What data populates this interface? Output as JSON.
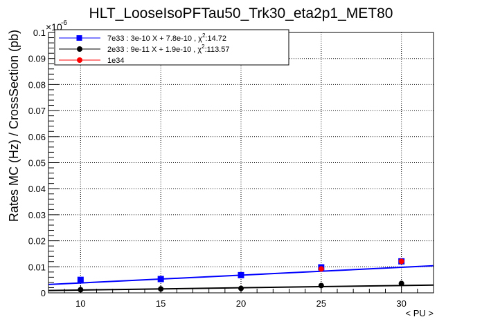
{
  "chart_data": {
    "type": "scatter",
    "title": "HLT_LooseIsoPFTau50_Trk30_eta2p1_MET80",
    "xlabel": "< PU >",
    "ylabel": "Rates MC (Hz) / CrossSection (pb)",
    "y_multiplier_label": "×10",
    "y_multiplier_exp": "-6",
    "xlim": [
      8,
      32
    ],
    "ylim": [
      0,
      0.1
    ],
    "grid": true,
    "legend_position": "top-left",
    "x_ticks": [
      10,
      15,
      20,
      25,
      30
    ],
    "x_tick_labels": [
      "10",
      "15",
      "20",
      "25",
      "30"
    ],
    "y_ticks": [
      0,
      0.01,
      0.02,
      0.03,
      0.04,
      0.05,
      0.06,
      0.07,
      0.08,
      0.09,
      0.1
    ],
    "y_tick_labels": [
      "0",
      "0.01",
      "0.02",
      "0.03",
      "0.04",
      "0.05",
      "0.06",
      "0.07",
      "0.08",
      "0.09",
      "0.1"
    ],
    "series": [
      {
        "name": "7e33 : 3e-10 X + 7.8e-10 , χ",
        "chi_exp": "2",
        "chi_value": ":14.72",
        "color": "#0000ff",
        "marker": "square",
        "x": [
          10,
          15,
          20,
          25,
          30
        ],
        "y": [
          0.005,
          0.0053,
          0.0068,
          0.0098,
          0.0121
        ],
        "fit": {
          "x": [
            8,
            32
          ],
          "y": [
            0.0032,
            0.0104
          ]
        }
      },
      {
        "name": "2e33 : 9e-11 X + 1.9e-10 , χ",
        "chi_exp": "2",
        "chi_value": ":113.57",
        "color": "#000000",
        "marker": "circle",
        "x": [
          10,
          15,
          20,
          25,
          30
        ],
        "y": [
          0.0012,
          0.0015,
          0.0017,
          0.0028,
          0.0036
        ],
        "fit": {
          "x": [
            8,
            32
          ],
          "y": [
            0.0009,
            0.003
          ]
        }
      },
      {
        "name": "1e34",
        "chi_exp": "",
        "chi_value": "",
        "color": "#ff0000",
        "marker": "circle",
        "x": [
          25,
          30
        ],
        "y": [
          0.0092,
          0.0121
        ],
        "fit": null
      }
    ]
  }
}
